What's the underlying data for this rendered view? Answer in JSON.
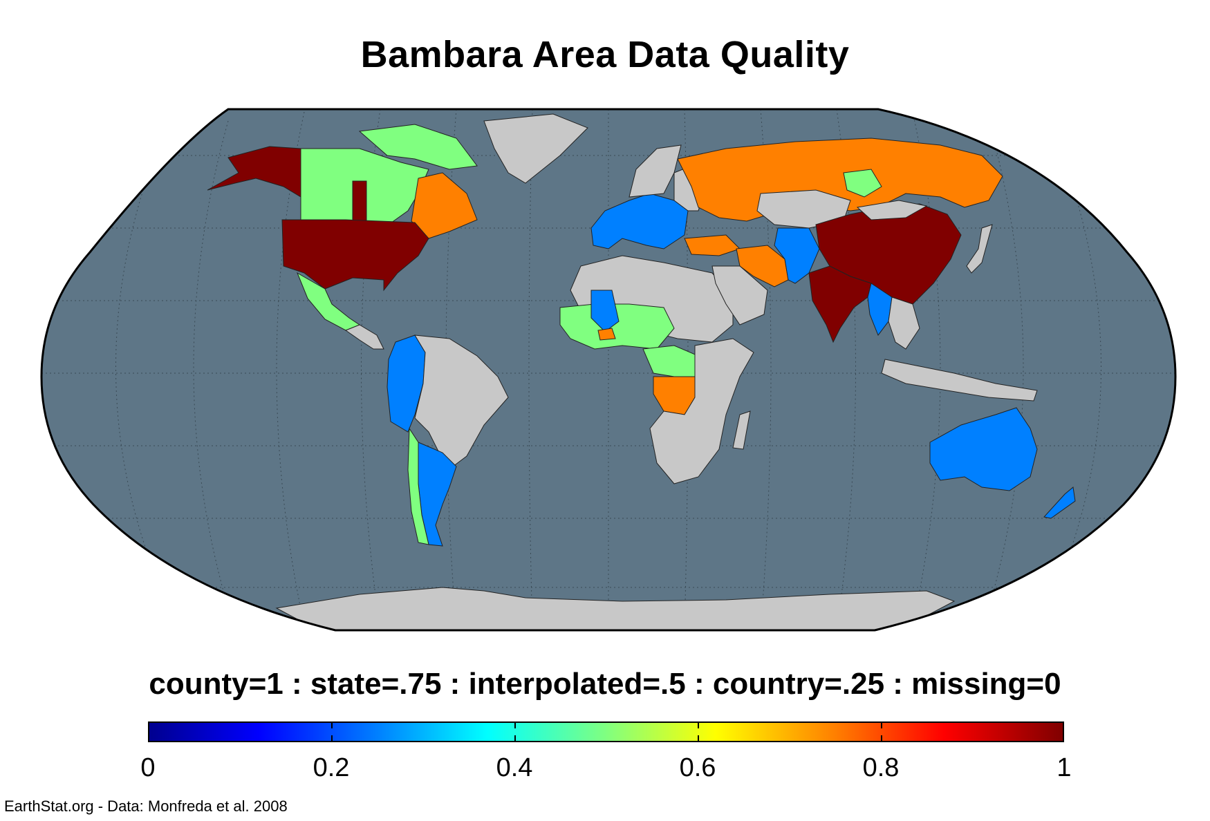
{
  "title": "Bambara Area Data Quality",
  "legend": {
    "caption": "county=1 : state=.75 : interpolated=.5 : country=.25 : missing=0",
    "colorbar_ticks": [
      "0",
      "0.2",
      "0.4",
      "0.6",
      "0.8",
      "1"
    ],
    "colormap": "jet",
    "range": [
      0,
      1
    ]
  },
  "credit": "EarthStat.org - Data: Monfreda et al. 2008",
  "colors": {
    "ocean": "#5e7687",
    "missing_land": "#c8c8c8",
    "county": "#800000",
    "state": "#ff8000",
    "interpolated": "#80ff80",
    "country": "#0080ff"
  },
  "map": {
    "projection": "Robinson",
    "regions": [
      {
        "name": "United States",
        "value": 1
      },
      {
        "name": "Alaska",
        "value": 1
      },
      {
        "name": "China",
        "value": 1
      },
      {
        "name": "India",
        "value": 1
      },
      {
        "name": "Russia",
        "value": 0.75
      },
      {
        "name": "Quebec",
        "value": 0.75
      },
      {
        "name": "Iran",
        "value": 0.75
      },
      {
        "name": "Turkey",
        "value": 0.75
      },
      {
        "name": "DR Congo",
        "value": 0.75
      },
      {
        "name": "Canada",
        "value": 0.5
      },
      {
        "name": "Mexico",
        "value": 0.5
      },
      {
        "name": "Kazakhstan region",
        "value": 0.5
      },
      {
        "name": "West Africa",
        "value": 0.5
      },
      {
        "name": "Central Africa",
        "value": 0.5
      },
      {
        "name": "Europe",
        "value": 0.25
      },
      {
        "name": "Australia",
        "value": 0.25
      },
      {
        "name": "New Zealand",
        "value": 0.25
      },
      {
        "name": "Argentina",
        "value": 0.25
      },
      {
        "name": "Peru / Colombia",
        "value": 0.25
      },
      {
        "name": "Pakistan / Afghanistan",
        "value": 0.25
      },
      {
        "name": "Mali",
        "value": 0.25
      },
      {
        "name": "Southeast Asia",
        "value": 0.25
      },
      {
        "name": "Brazil",
        "value": 0
      },
      {
        "name": "Greenland",
        "value": 0
      },
      {
        "name": "Antarctica",
        "value": 0
      },
      {
        "name": "North Africa",
        "value": 0
      },
      {
        "name": "Southern Africa",
        "value": 0
      },
      {
        "name": "Arabian Peninsula",
        "value": 0
      },
      {
        "name": "Indonesia",
        "value": 0
      }
    ]
  }
}
